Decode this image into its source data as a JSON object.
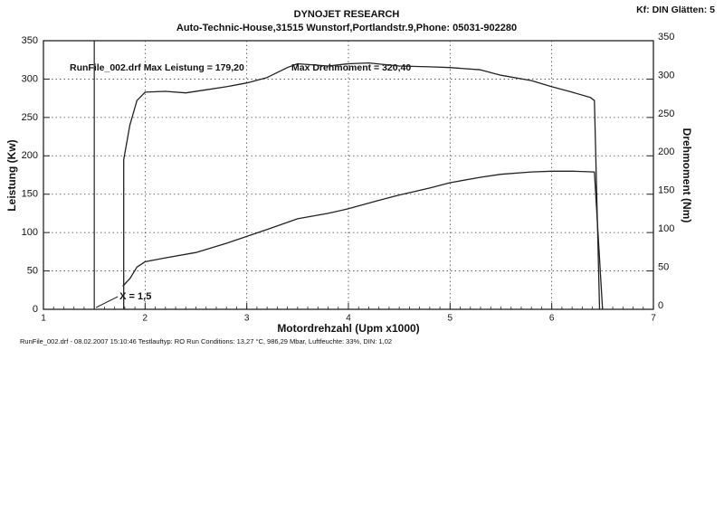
{
  "chart_data": {
    "type": "line",
    "title": "DYNOJET RESEARCH",
    "subtitle": "Auto-Technic-House,31515 Wunstorf,Portlandstr.9,Phone: 05031-902280",
    "settings_label": "Kf: DIN  Glätten: 5",
    "annotations": [
      "RunFile_002.drf Max Leistung = 179,20",
      "Max Drehmoment = 320,40"
    ],
    "cursor": {
      "value": 1.5,
      "label": "X = 1,5"
    },
    "footer": "RunFile_002.drf - 08.02.2007 15:10:46  Testlauftyp: RO  Run Conditions: 13,27 °C, 986,29 Mbar,  Luftfeuchte: 33%,  DIN: 1,02",
    "xlabel": "Motordrehzahl (Upm x1000)",
    "ylabel": "Leistung (Kw)",
    "y2label": "Drehmoment (Nm)",
    "xlim": [
      1,
      7
    ],
    "xticks": [
      1,
      2,
      3,
      4,
      5,
      6,
      7
    ],
    "ylim": [
      0,
      350
    ],
    "yticks": [
      0,
      50,
      100,
      150,
      200,
      250,
      300,
      350
    ],
    "y2lim": [
      0,
      350
    ],
    "y2ticks": [
      0,
      50,
      100,
      150,
      200,
      250,
      300,
      350
    ],
    "grid": true,
    "series": [
      {
        "color": "#222222",
        "x": [
          1.78,
          1.85,
          1.92,
          2.0,
          2.2,
          2.5,
          2.8,
          3.0,
          3.2,
          3.5,
          3.8,
          4.0,
          4.3,
          4.5,
          4.8,
          5.0,
          5.3,
          5.5,
          5.8,
          6.0,
          6.2,
          6.42,
          6.5
        ],
        "values": [
          30,
          40,
          55,
          62,
          67,
          74,
          86,
          95,
          104,
          118,
          125,
          131,
          142,
          149,
          158,
          165,
          172,
          176,
          179,
          180,
          180,
          179,
          0
        ]
      },
      {
        "color": "#222222",
        "axis": "y2",
        "x": [
          1.79,
          1.79,
          1.85,
          1.92,
          2.0,
          2.2,
          2.4,
          2.6,
          2.8,
          3.0,
          3.2,
          3.4,
          3.5,
          3.8,
          4.0,
          4.2,
          4.5,
          4.8,
          5.0,
          5.3,
          5.5,
          5.8,
          6.0,
          6.2,
          6.38,
          6.42,
          6.47
        ],
        "values": [
          0,
          195,
          240,
          272,
          283,
          284,
          282,
          286,
          290,
          295,
          302,
          315,
          320,
          317,
          320,
          321,
          317,
          316,
          315,
          312,
          305,
          298,
          290,
          283,
          276,
          272,
          0
        ]
      }
    ]
  }
}
